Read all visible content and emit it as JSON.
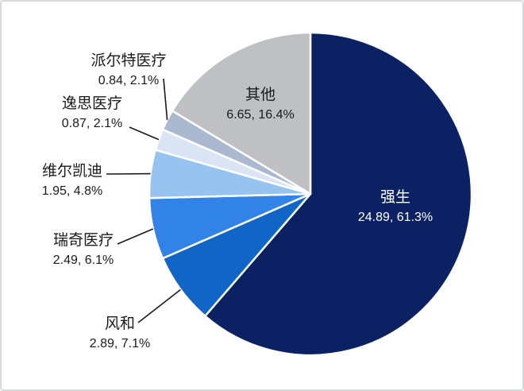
{
  "chart_data": {
    "type": "pie",
    "title": "",
    "legend_position": "none",
    "direction": "clockwise",
    "start_angle_deg": 0,
    "grid": false,
    "label_format": "name, then 'value, percent%'",
    "slices": [
      {
        "id": "qiangsheng",
        "name": "强生",
        "value": 24.89,
        "percent": 61.3,
        "value_label": "24.89, 61.3%",
        "color": "#0c2164",
        "label_placement": "inside",
        "label_color": "#ffffff"
      },
      {
        "id": "fenghe",
        "name": "风和",
        "value": 2.89,
        "percent": 7.1,
        "value_label": "2.89, 7.1%",
        "color": "#1165c6",
        "label_placement": "outside",
        "label_color": "#1a1a1a"
      },
      {
        "id": "ruiqi",
        "name": "瑞奇医疗",
        "value": 2.49,
        "percent": 6.1,
        "value_label": "2.49, 6.1%",
        "color": "#3283e8",
        "label_placement": "outside",
        "label_color": "#1a1a1a"
      },
      {
        "id": "weierkaidi",
        "name": "维尔凯迪",
        "value": 1.95,
        "percent": 4.8,
        "value_label": "1.95, 4.8%",
        "color": "#97c3f1",
        "label_placement": "outside",
        "label_color": "#1a1a1a"
      },
      {
        "id": "yisi",
        "name": "逸思医疗",
        "value": 0.87,
        "percent": 2.1,
        "value_label": "0.87, 2.1%",
        "color": "#d9e5f5",
        "label_placement": "outside",
        "label_color": "#1a1a1a"
      },
      {
        "id": "paierte",
        "name": "派尔特医疗",
        "value": 0.84,
        "percent": 2.1,
        "value_label": "0.84, 2.1%",
        "color": "#aab9cf",
        "label_placement": "outside",
        "label_color": "#1a1a1a"
      },
      {
        "id": "qita",
        "name": "其他",
        "value": 6.65,
        "percent": 16.4,
        "value_label": "6.65, 16.4%",
        "color": "#bfc0c3",
        "label_placement": "inside",
        "label_color": "#1a1a1a"
      }
    ],
    "colors": {
      "leader_line": "#1a1a1a",
      "slice_border": "#ffffff",
      "background": "#ffffff",
      "frame_border": "#d7d9dd"
    }
  }
}
